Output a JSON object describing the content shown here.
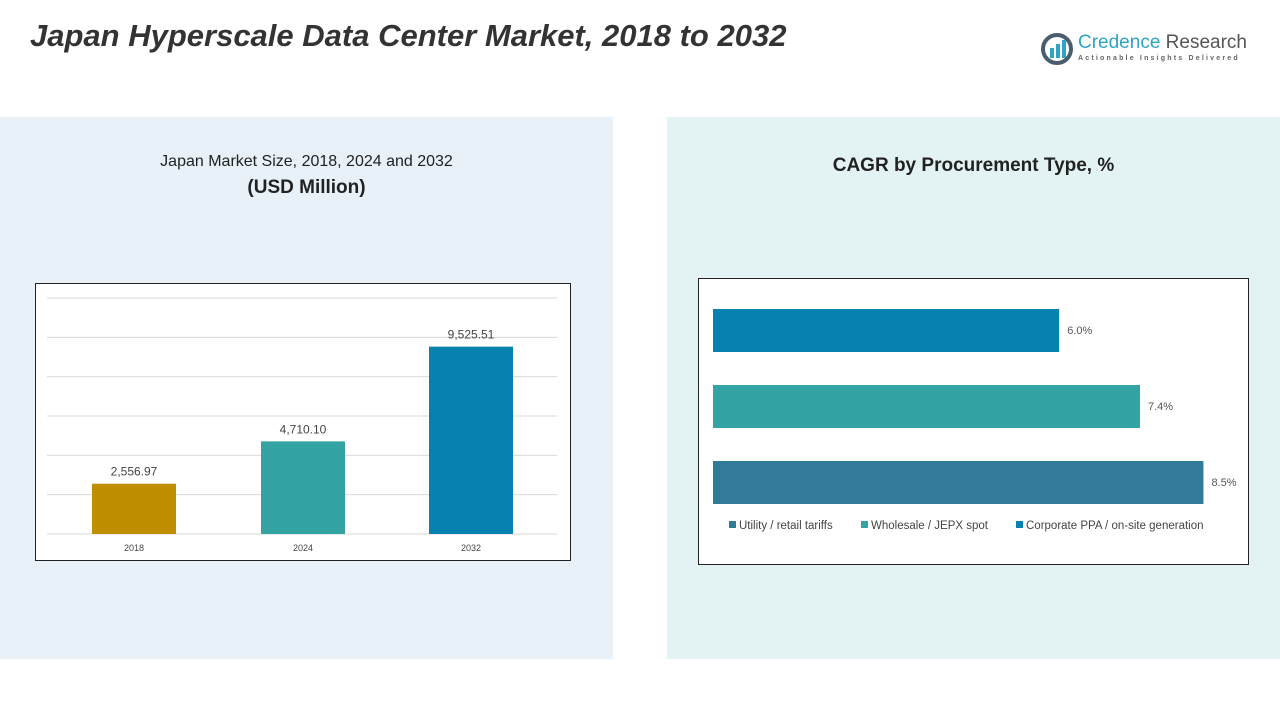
{
  "title": "Japan Hyperscale Data Center Market, 2018 to 2032",
  "logo": {
    "name1": "Credence",
    "name2": " Research",
    "tagline": "Actionable Insights Delivered"
  },
  "chart_data": [
    {
      "type": "bar",
      "title": "Japan Market Size, 2018, 2024 and 2032",
      "subtitle": "(USD Million)",
      "categories": [
        "2018",
        "2024",
        "2032"
      ],
      "values": [
        2556.97,
        4710.1,
        9525.51
      ],
      "labels": [
        "2,556.97",
        "4,710.10",
        "9,525.51"
      ],
      "ylim": [
        0,
        12000
      ],
      "grid": true,
      "colors": [
        "#c08f00",
        "#33a3a3",
        "#0782b0"
      ]
    },
    {
      "type": "bar",
      "orientation": "horizontal",
      "title": "CAGR by Procurement Type, %",
      "categories": [
        "Corporate PPA / on-site generation",
        "Wholesale / JEPX spot",
        "Utility / retail tariffs"
      ],
      "values": [
        6.0,
        7.4,
        8.5
      ],
      "labels": [
        "6.0%",
        "7.4%",
        "8.5%"
      ],
      "xlim": [
        0,
        9
      ],
      "legend": "bottom",
      "colors": [
        "#0782b0",
        "#33a3a3",
        "#317b99"
      ],
      "legend_items": [
        {
          "label": "Utility / retail tariffs",
          "color": "#317b99"
        },
        {
          "label": "Wholesale / JEPX spot",
          "color": "#33a3a3"
        },
        {
          "label": "Corporate PPA / on-site generation",
          "color": "#0782b0"
        }
      ]
    }
  ]
}
